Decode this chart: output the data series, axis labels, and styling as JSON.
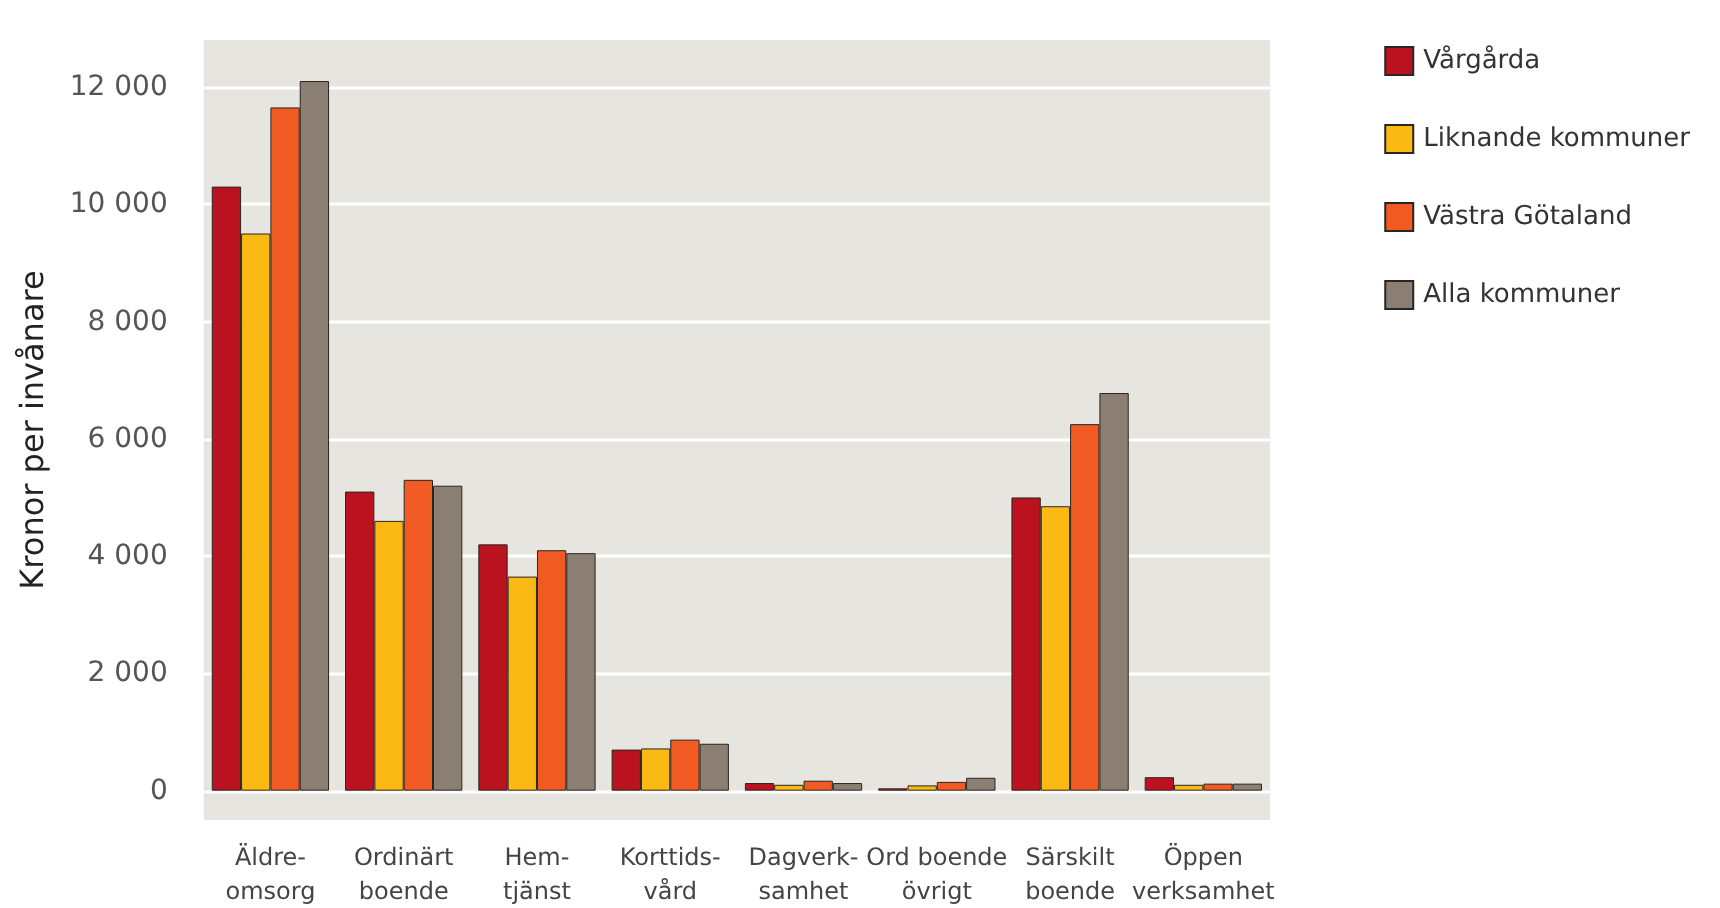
{
  "chart_data": {
    "type": "bar",
    "ylabel": "Kronor per invånare",
    "categories": [
      "Äldre-\nomsorg",
      "Ordinärt\nboende",
      "Hem-\ntjänst",
      "Korttids-\nvård",
      "Dagverk-\nsamhet",
      "Ord boende\növrigt",
      "Särskilt\nboende",
      "Öppen\nverksamhet"
    ],
    "series": [
      {
        "name": "Vårgårda",
        "color": "#bb121f",
        "values": [
          10300,
          5100,
          4200,
          700,
          130,
          40,
          5000,
          230
        ]
      },
      {
        "name": "Liknande kommuner",
        "color": "#fbb913",
        "values": [
          9500,
          4600,
          3650,
          720,
          100,
          90,
          4850,
          100
        ]
      },
      {
        "name": "Västra Götaland",
        "color": "#f15a22",
        "values": [
          11650,
          5300,
          4100,
          870,
          170,
          150,
          6250,
          120
        ]
      },
      {
        "name": "Alla kommuner",
        "color": "#8a7f72",
        "values": [
          12100,
          5200,
          4050,
          800,
          130,
          220,
          6780,
          120
        ]
      }
    ],
    "ylim": [
      -500,
      12800
    ],
    "yticks": [
      0,
      {
        "value": 2000,
        "label": "2 000"
      },
      {
        "value": 4000,
        "label": "4 000"
      },
      {
        "value": 6000,
        "label": "6 000"
      },
      {
        "value": 8000,
        "label": "8 000"
      },
      {
        "value": 10000,
        "label": "10 000"
      },
      {
        "value": 12000,
        "label": "12 000"
      }
    ],
    "grid": "y",
    "legend": "right"
  }
}
